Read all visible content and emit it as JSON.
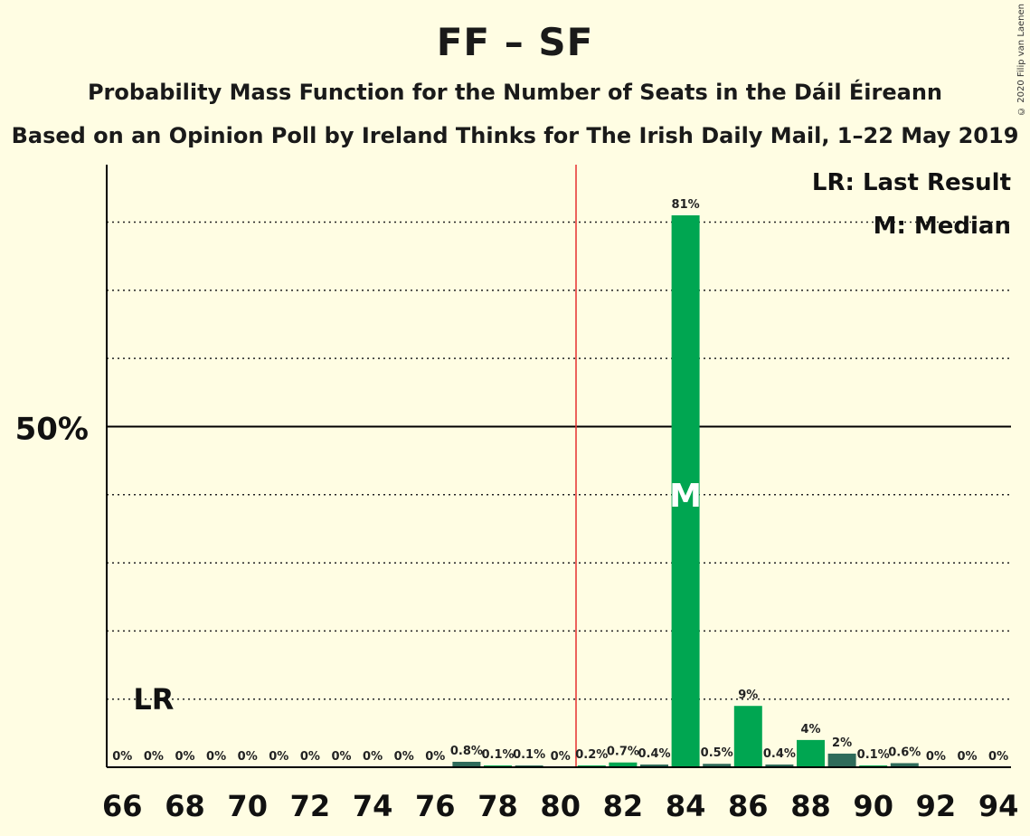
{
  "title": "FF – SF",
  "subtitle": "Probability Mass Function for the Number of Seats in the Dáil Éireann",
  "subtitle2": "Based on an Opinion Poll by Ireland Thinks for The Irish Daily Mail, 1–22 May 2019",
  "copyright": "© 2020 Filip van Laenen",
  "legend": {
    "last_result": "LR: Last Result",
    "median": "M: Median"
  },
  "markers": {
    "last_result_label": "LR",
    "last_result_seat": 67,
    "median_label": "M",
    "median_seat": 84,
    "majority_seat": 80.5
  },
  "colors": {
    "background": "#FFFDE3",
    "bar_main": "#00A651",
    "bar_alt": "#2E6B5A",
    "majority_line": "#E53030",
    "axis": "#000000"
  },
  "chart_data": {
    "type": "bar",
    "x": [
      66,
      67,
      68,
      69,
      70,
      71,
      72,
      73,
      74,
      75,
      76,
      77,
      78,
      79,
      80,
      81,
      82,
      83,
      84,
      85,
      86,
      87,
      88,
      89,
      90,
      91,
      92,
      93,
      94
    ],
    "values": [
      0,
      0,
      0,
      0,
      0,
      0,
      0,
      0,
      0,
      0,
      0,
      0.8,
      0.1,
      0.1,
      0,
      0.2,
      0.7,
      0.4,
      81,
      0.5,
      9,
      0.4,
      4,
      2,
      0.1,
      0.6,
      0,
      0,
      0
    ],
    "labels": [
      "0%",
      "0%",
      "0%",
      "0%",
      "0%",
      "0%",
      "0%",
      "0%",
      "0%",
      "0%",
      "0%",
      "0.8%",
      "0.1%",
      "0.1%",
      "0%",
      "0.2%",
      "0.7%",
      "0.4%",
      "81%",
      "0.5%",
      "9%",
      "0.4%",
      "4%",
      "2%",
      "0.1%",
      "0.6%",
      "0%",
      "0%",
      "0%"
    ],
    "bar_colors": [
      "main",
      "main",
      "main",
      "main",
      "main",
      "main",
      "main",
      "main",
      "main",
      "main",
      "main",
      "alt",
      "main",
      "alt",
      "main",
      "main",
      "main",
      "alt",
      "main",
      "alt",
      "main",
      "alt",
      "main",
      "alt",
      "main",
      "alt",
      "main",
      "alt",
      "main"
    ],
    "x_ticks": [
      "66",
      "68",
      "70",
      "72",
      "74",
      "76",
      "78",
      "80",
      "82",
      "84",
      "86",
      "88",
      "90",
      "92",
      "94"
    ],
    "x_tick_values": [
      66,
      68,
      70,
      72,
      74,
      76,
      78,
      80,
      82,
      84,
      86,
      88,
      90,
      92,
      94
    ],
    "y_tick_label": "50%",
    "y_tick_value": 50,
    "gridlines": [
      10,
      20,
      30,
      40,
      60,
      70,
      80
    ],
    "ylim": [
      0,
      88
    ],
    "xlim": [
      65.5,
      94.5
    ],
    "grid": true,
    "legend_position": "top-right"
  }
}
